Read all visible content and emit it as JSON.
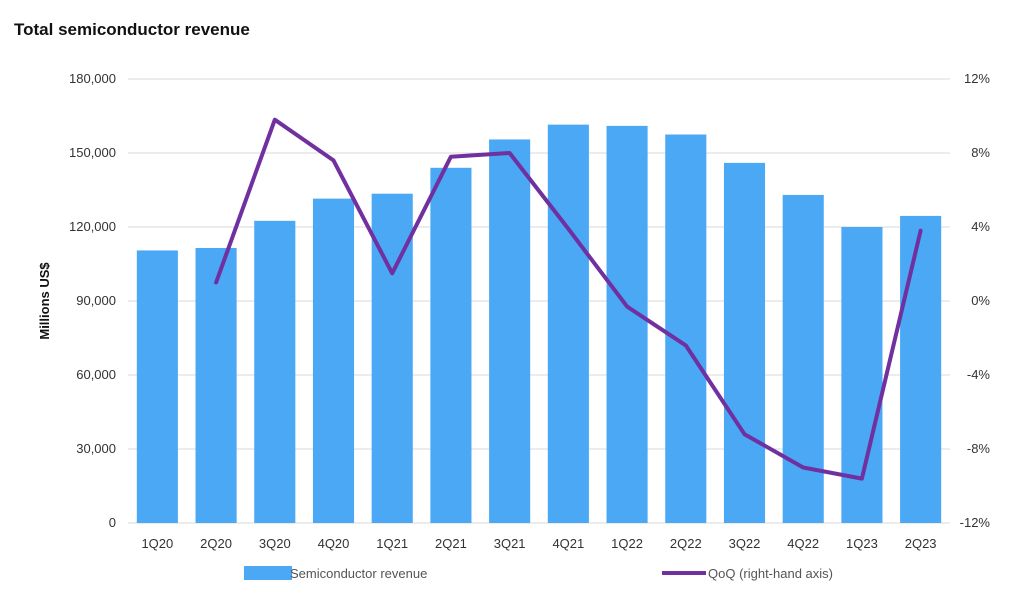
{
  "chart_data": {
    "type": "bar",
    "title": "Total semiconductor revenue",
    "ylabel": "Millions US$",
    "xlabel": "",
    "categories": [
      "1Q20",
      "2Q20",
      "3Q20",
      "4Q20",
      "1Q21",
      "2Q21",
      "3Q21",
      "4Q21",
      "1Q22",
      "2Q22",
      "3Q22",
      "4Q22",
      "1Q23",
      "2Q23"
    ],
    "ylim": [
      0,
      180000
    ],
    "yticks": [
      0,
      30000,
      60000,
      90000,
      120000,
      150000,
      180000
    ],
    "ytick_labels": [
      "0",
      "30,000",
      "60,000",
      "90,000",
      "120,000",
      "150,000",
      "180,000"
    ],
    "y2lim": [
      -12,
      12
    ],
    "y2ticks": [
      -12,
      -8,
      -4,
      0,
      4,
      8,
      12
    ],
    "y2tick_labels": [
      "-12%",
      "-8%",
      "-4%",
      "0%",
      "4%",
      "8%",
      "12%"
    ],
    "series": [
      {
        "name": "Semiconductor revenue",
        "type": "bar",
        "axis": "left",
        "color": "#4aa8f5",
        "values": [
          110500,
          111500,
          122500,
          131500,
          133500,
          144000,
          155500,
          161500,
          161000,
          157500,
          146000,
          133000,
          120000,
          124500
        ]
      },
      {
        "name": "QoQ (right-hand axis)",
        "type": "line",
        "axis": "right",
        "color": "#7030a0",
        "values": [
          null,
          1.0,
          9.8,
          7.6,
          1.5,
          7.8,
          8.0,
          3.9,
          -0.3,
          -2.4,
          -7.2,
          -9.0,
          -9.6,
          3.8
        ]
      }
    ],
    "grid": true,
    "legend": "bottom"
  }
}
